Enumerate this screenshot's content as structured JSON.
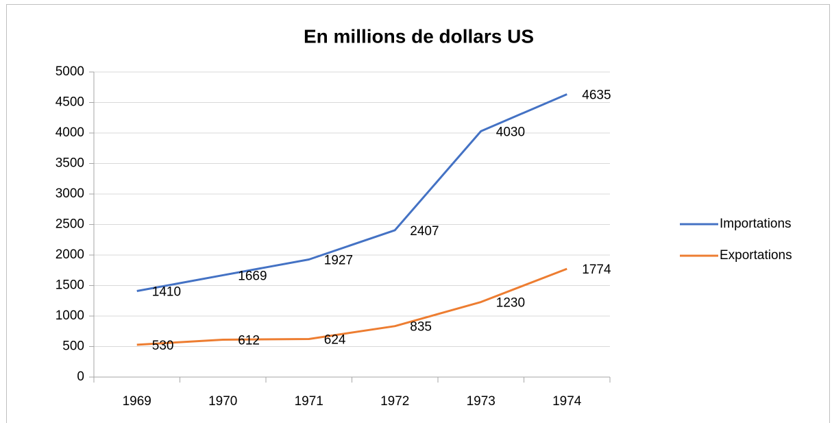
{
  "chart_data": {
    "type": "line",
    "title": "En millions de dollars US",
    "categories": [
      "1969",
      "1970",
      "1971",
      "1972",
      "1973",
      "1974"
    ],
    "series": [
      {
        "name": "Importations",
        "color": "#4472c4",
        "values": [
          1410,
          1669,
          1927,
          2407,
          4030,
          4635
        ]
      },
      {
        "name": "Exportations",
        "color": "#ed7d31",
        "values": [
          530,
          612,
          624,
          835,
          1230,
          1774
        ]
      }
    ],
    "ylim": [
      0,
      5000
    ],
    "yticks": [
      0,
      500,
      1000,
      1500,
      2000,
      2500,
      3000,
      3500,
      4000,
      4500,
      5000
    ],
    "grid": true,
    "legend": "right"
  }
}
